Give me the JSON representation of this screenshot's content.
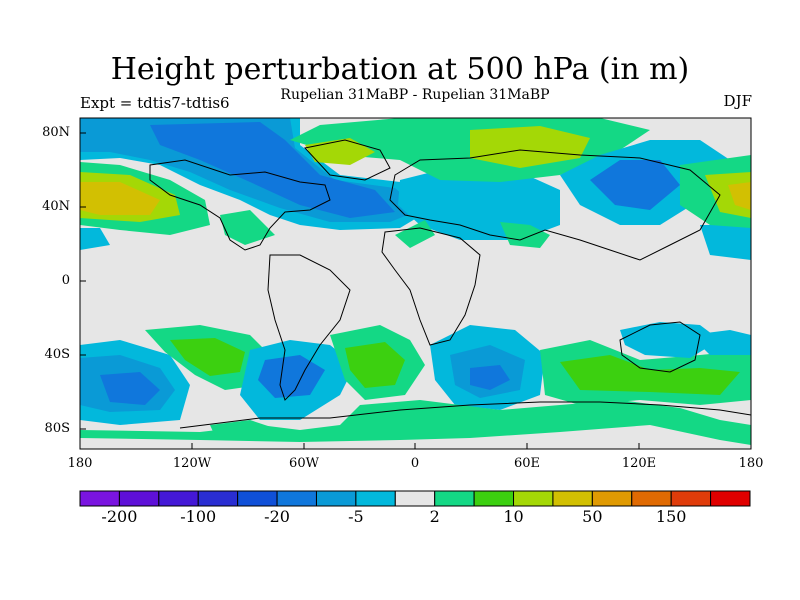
{
  "title": "Height perturbation at 500 hPa (in m)",
  "subtitle": "Rupelian  31MaBP - Rupelian  31MaBP",
  "left_label": "Expt = tdtis7-tdtis6",
  "right_label": "DJF",
  "y_ticks": [
    "80N",
    "40N",
    "0",
    "40S",
    "80S"
  ],
  "x_ticks": [
    "180",
    "120W",
    "60W",
    "0",
    "60E",
    "120E",
    "180"
  ],
  "colorbar": {
    "colors": [
      "#7a14e0",
      "#5e10d8",
      "#4418d6",
      "#2a2ed2",
      "#1050d8",
      "#1077dc",
      "#0a9ad6",
      "#02b8dc",
      "#e6e6e6",
      "#14d885",
      "#3cd010",
      "#a4d806",
      "#d2c002",
      "#e09a02",
      "#e06a02",
      "#e03c0a",
      "#e00000"
    ],
    "labels": [
      "-200",
      "-100",
      "-20",
      "-5",
      "2",
      "10",
      "50",
      "150"
    ]
  },
  "legend_colors": {
    "neg_weak": "#02b8dc",
    "neg_mid": "#0a9ad6",
    "neg_strong": "#1077dc",
    "neg_vstrong": "#1050d8",
    "neutral": "#e6e6e6",
    "pos_weak": "#14d885",
    "pos_mid": "#3cd010",
    "pos_strong": "#a4d806",
    "pos_vstrong": "#d2c002"
  }
}
